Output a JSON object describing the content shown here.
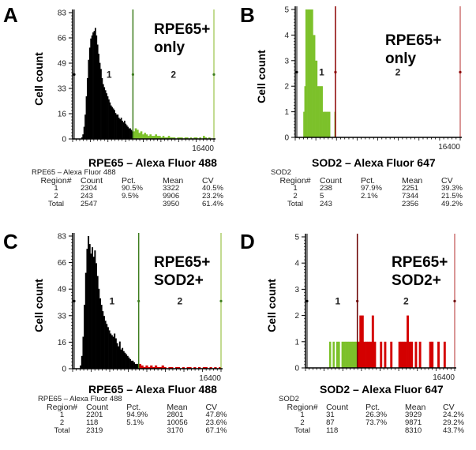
{
  "panels": [
    {
      "letter": "A",
      "annotation": [
        "RPE65+",
        "only"
      ],
      "x_title": "RPE65 – Alexa Fluor 488",
      "stats": {
        "name": "RPE65 – Alexa Fluor 488",
        "headers": [
          "Region#",
          "Count",
          "Pct.",
          "Mean",
          "CV"
        ],
        "rows": [
          [
            "1",
            "2304",
            "90.5%",
            "3322",
            "40.5%"
          ],
          [
            "2",
            "243",
            "9.5%",
            "9906",
            "23.2%"
          ],
          [
            "Total",
            "2547",
            "",
            "3950",
            "61.4%"
          ]
        ]
      }
    },
    {
      "letter": "B",
      "annotation": [
        "RPE65+",
        "only"
      ],
      "x_title": "SOD2 – Alexa Fluor 647",
      "stats": {
        "name": "SOD2",
        "headers": [
          "Region#",
          "Count",
          "Pct.",
          "Mean",
          "CV"
        ],
        "rows": [
          [
            "1",
            "238",
            "97.9%",
            "2251",
            "39.3%"
          ],
          [
            "2",
            "5",
            "2.1%",
            "7344",
            "21.5%"
          ],
          [
            "Total",
            "243",
            "",
            "2356",
            "49.2%"
          ]
        ]
      }
    },
    {
      "letter": "C",
      "annotation": [
        "RPE65+",
        "SOD2+"
      ],
      "x_title": "RPE65 – Alexa Fluor 488",
      "stats": {
        "name": "RPE65 – Alexa Fluor 488",
        "headers": [
          "Region#",
          "Count",
          "Pct.",
          "Mean",
          "CV"
        ],
        "rows": [
          [
            "1",
            "2201",
            "94.9%",
            "2801",
            "47.8%"
          ],
          [
            "2",
            "118",
            "5.1%",
            "10056",
            "23.6%"
          ],
          [
            "Total",
            "2319",
            "",
            "3170",
            "67.1%"
          ]
        ]
      }
    },
    {
      "letter": "D",
      "annotation": [
        "RPE65+",
        "SOD2+"
      ],
      "x_title": "SOD2 – Alexa Fluor 647",
      "stats": {
        "name": "SOD2",
        "headers": [
          "Region#",
          "Count",
          "Pct.",
          "Mean",
          "CV"
        ],
        "rows": [
          [
            "1",
            "31",
            "26.3%",
            "3929",
            "24.2%"
          ],
          [
            "2",
            "87",
            "73.7%",
            "9871",
            "29.2%"
          ],
          [
            "Total",
            "118",
            "",
            "8310",
            "43.7%"
          ]
        ]
      }
    }
  ],
  "chart_data": [
    {
      "panel": "A",
      "type": "bar",
      "title": "",
      "xlabel": "RPE65 – Alexa Fluor 488",
      "ylabel": "Cell count",
      "xlim": [
        0,
        16400
      ],
      "ylim": [
        0,
        83
      ],
      "yticks": [
        "0",
        "16",
        "33",
        "49",
        "66",
        "83"
      ],
      "xtick_label": "16400",
      "region_labels": [
        "1",
        "2"
      ],
      "gate_x": [
        0,
        7000,
        16400
      ],
      "colors": {
        "region1": "#000000",
        "region2": "#7cc12a",
        "gate": "#3e7d1e",
        "gate_end": "#9bc34a"
      },
      "series": [
        {
          "name": "region1",
          "x_start": 1000,
          "x_end": 7000,
          "values": [
            1,
            3,
            8,
            16,
            28,
            40,
            52,
            60,
            66,
            68,
            70,
            71,
            73,
            68,
            62,
            56,
            50,
            46,
            40,
            36,
            34,
            32,
            30,
            28,
            26,
            24,
            22,
            21,
            20,
            19,
            17,
            16,
            16,
            14,
            13,
            14,
            12,
            11,
            12,
            10,
            9,
            8,
            7,
            7,
            6,
            5
          ]
        },
        {
          "name": "region2",
          "x_start": 7000,
          "x_end": 16400,
          "values": [
            5,
            7,
            6,
            4,
            5,
            3,
            4,
            3,
            2,
            3,
            2,
            2,
            3,
            2,
            2,
            1,
            2,
            1,
            1,
            2,
            1,
            1,
            1,
            0,
            1,
            1,
            1,
            0,
            1,
            1,
            0,
            1,
            0,
            1,
            1,
            0,
            1,
            0,
            2,
            1,
            0,
            1,
            0,
            0
          ]
        }
      ]
    },
    {
      "panel": "B",
      "type": "bar",
      "title": "",
      "xlabel": "SOD2 – Alexa Fluor 647",
      "ylabel": "Cell count",
      "xlim": [
        0,
        16400
      ],
      "ylim": [
        0,
        5
      ],
      "yticks": [
        "0",
        "1",
        "2",
        "3",
        "4",
        "5"
      ],
      "xtick_label": "16400",
      "region_labels": [
        "1",
        "2"
      ],
      "gate_x": [
        0,
        4000,
        16400
      ],
      "colors": {
        "region1": "#7cc12a",
        "region2": "#b30000",
        "gate": "#8b0000",
        "gate_end": "#c05050"
      },
      "series": [
        {
          "name": "region1",
          "x_start": 800,
          "x_end": 4000,
          "values": [
            1,
            2,
            5,
            5,
            5,
            5,
            5,
            5,
            5,
            4,
            4,
            3,
            3,
            2,
            2,
            2,
            2,
            2,
            1,
            1,
            1,
            1,
            1,
            1,
            1,
            0,
            0,
            0,
            0,
            1
          ]
        },
        {
          "name": "region2",
          "x_start": 4000,
          "x_end": 16400,
          "values": []
        }
      ]
    },
    {
      "panel": "C",
      "type": "bar",
      "title": "",
      "xlabel": "RPE65 – Alexa Fluor 488",
      "ylabel": "Cell count",
      "xlim": [
        0,
        16400
      ],
      "ylim": [
        0,
        83
      ],
      "yticks": [
        "0",
        "16",
        "33",
        "49",
        "66",
        "83"
      ],
      "xtick_label": "16400",
      "region_labels": [
        "1",
        "2"
      ],
      "gate_x": [
        0,
        7300,
        16400
      ],
      "colors": {
        "region1": "#000000",
        "region2": "#d40000",
        "gate": "#3e7d1e",
        "gate_end": "#9bc34a"
      },
      "series": [
        {
          "name": "region1",
          "x_start": 800,
          "x_end": 7300,
          "values": [
            2,
            8,
            20,
            40,
            60,
            75,
            83,
            78,
            72,
            76,
            70,
            74,
            66,
            58,
            50,
            44,
            40,
            36,
            33,
            30,
            28,
            26,
            24,
            22,
            21,
            20,
            22,
            19,
            16,
            14,
            17,
            12,
            13,
            11,
            10,
            9,
            8,
            7,
            6,
            5,
            5,
            4,
            3,
            3,
            3
          ]
        },
        {
          "name": "region2",
          "x_start": 7300,
          "x_end": 16400,
          "values": [
            3,
            2,
            1,
            2,
            1,
            2,
            1,
            2,
            1,
            1,
            2,
            1,
            0,
            1,
            1,
            0,
            1,
            1,
            0,
            1,
            0,
            1,
            1,
            0,
            1,
            0,
            1,
            0,
            1,
            1,
            0,
            1,
            0,
            1,
            0,
            1
          ]
        }
      ]
    },
    {
      "panel": "D",
      "type": "bar",
      "title": "",
      "xlabel": "SOD2 – Alexa Fluor 647",
      "ylabel": "Cell count",
      "xlim": [
        0,
        16400
      ],
      "ylim": [
        0,
        5
      ],
      "yticks": [
        "0",
        "1",
        "2",
        "3",
        "4",
        "5"
      ],
      "xtick_label": "16400",
      "region_labels": [
        "1",
        "2"
      ],
      "gate_x": [
        0,
        5700,
        16400
      ],
      "colors": {
        "region1": "#7cc12a",
        "region2": "#d40000",
        "gate": "#6b0000",
        "gate_end": "#c05050"
      },
      "series": [
        {
          "name": "region1",
          "x_start": 2600,
          "x_end": 5700,
          "values": [
            1,
            0,
            1,
            0,
            1,
            1,
            0,
            1,
            1,
            1,
            1,
            1,
            1,
            1,
            1,
            1
          ]
        },
        {
          "name": "region2",
          "x_start": 5700,
          "x_end": 15400,
          "values": [
            1,
            2,
            2,
            1,
            1,
            1,
            1,
            2,
            1,
            0,
            0,
            1,
            0,
            1,
            0,
            0,
            1,
            0,
            0,
            0,
            1,
            1,
            1,
            1,
            2,
            1,
            1,
            0,
            1,
            0,
            1,
            0,
            0,
            0,
            0,
            1,
            1,
            0,
            0,
            1,
            0,
            0,
            1
          ]
        }
      ]
    }
  ]
}
